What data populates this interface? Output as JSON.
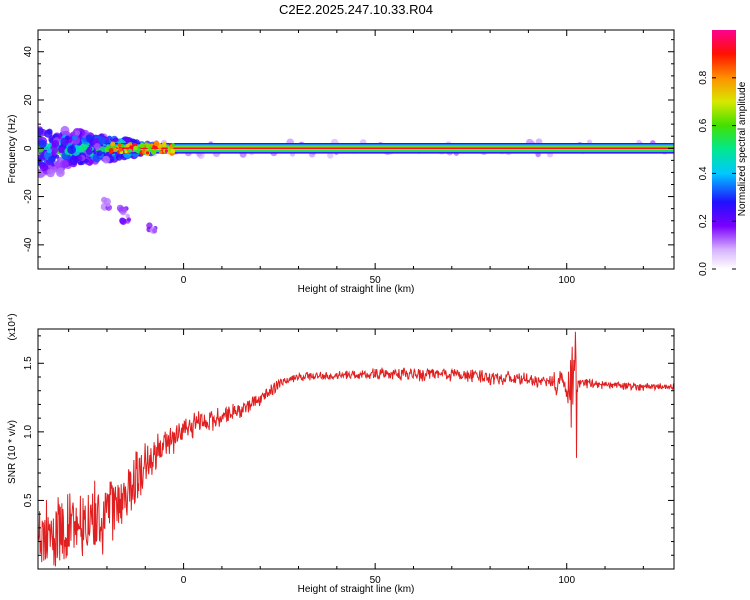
{
  "title": "C2E2.2025.247.10.33.R04",
  "chart_data": [
    {
      "type": "heatmap",
      "xlabel": "Height of straight line (km)",
      "ylabel": "Frequency (Hz)",
      "xlim": [
        -38,
        128
      ],
      "ylim": [
        -50,
        49
      ],
      "x_ticks": [
        0,
        50,
        100
      ],
      "y_ticks": [
        -40,
        -20,
        0,
        20,
        40
      ],
      "colorbar": {
        "label": "Normalized spectral amplitude",
        "ticks": [
          "0.0",
          "0.2",
          "0.4",
          "0.6",
          "0.8"
        ],
        "range": [
          0,
          1
        ]
      },
      "features": [
        {
          "name": "main_band",
          "freq_center": 0,
          "freq_halfwidth": 2,
          "x_start": -38,
          "x_end": 128,
          "amplitude": 1.0
        },
        {
          "name": "low_altitude_scatter",
          "x_range": [
            -38,
            -8
          ],
          "freq_range": [
            -18,
            6
          ],
          "amplitude": 0.3
        },
        {
          "name": "diagonal_tail",
          "points": [
            [
              -20,
              -23
            ],
            [
              -16,
              -26
            ],
            [
              -15,
              -29
            ],
            [
              -8,
              -33
            ]
          ],
          "amplitude": 0.05
        }
      ]
    },
    {
      "type": "line",
      "xlabel": "Height of straight line (km)",
      "ylabel": "SNR (10 * v/v)",
      "y_multiplier": "(x10⁴)",
      "xlim": [
        -38,
        128
      ],
      "ylim": [
        0,
        17500
      ],
      "x_ticks": [
        0,
        50,
        100
      ],
      "y_ticks": [
        "0.5",
        "1.0",
        "1.5"
      ],
      "color": "#e02020",
      "envelope": {
        "x": [
          -38,
          -30,
          -20,
          -15,
          -10,
          -5,
          0,
          5,
          10,
          15,
          20,
          25,
          30,
          40,
          50,
          60,
          70,
          80,
          90,
          95,
          100,
          101,
          102,
          103,
          104,
          110,
          120,
          128
        ],
        "mean": [
          2200,
          3000,
          4000,
          5500,
          7500,
          9000,
          10000,
          10800,
          11000,
          11600,
          12400,
          13500,
          14000,
          14100,
          14200,
          14200,
          14200,
          14000,
          13800,
          13600,
          13500,
          13500,
          13500,
          13600,
          13600,
          13400,
          13300,
          13300
        ],
        "amp": [
          2200,
          2500,
          2700,
          2200,
          1800,
          1300,
          1000,
          800,
          700,
          600,
          500,
          400,
          300,
          300,
          400,
          500,
          500,
          500,
          450,
          400,
          1500,
          3200,
          2500,
          700,
          400,
          300,
          250,
          250
        ]
      },
      "spikes": [
        {
          "x": 101.5,
          "y": 16200
        },
        {
          "x": 102.3,
          "y": 17300
        },
        {
          "x": 102.6,
          "y": 8100
        }
      ]
    }
  ]
}
